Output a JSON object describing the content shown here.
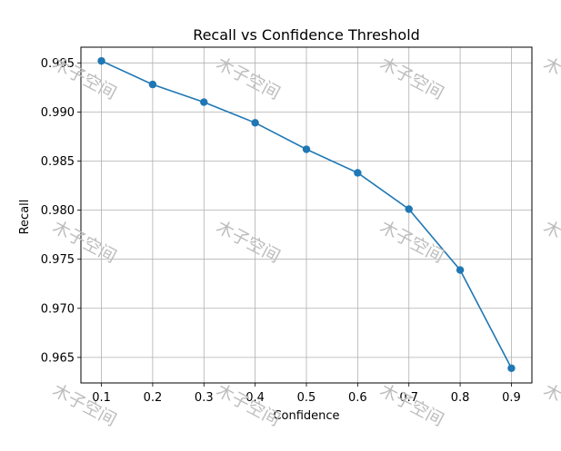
{
  "chart_data": {
    "type": "line",
    "title": "Recall vs Confidence Threshold",
    "xlabel": "Confidence",
    "ylabel": "Recall",
    "x": [
      0.1,
      0.2,
      0.3,
      0.4,
      0.5,
      0.6,
      0.7,
      0.8,
      0.9
    ],
    "xtick_labels": [
      "0.1",
      "0.2",
      "0.3",
      "0.4",
      "0.5",
      "0.6",
      "0.7",
      "0.8",
      "0.9"
    ],
    "yticks": [
      0.965,
      0.97,
      0.975,
      0.98,
      0.985,
      0.99,
      0.995
    ],
    "ytick_labels": [
      "0.965",
      "0.970",
      "0.975",
      "0.980",
      "0.985",
      "0.990",
      "0.995"
    ],
    "xlim": [
      0.06,
      0.94
    ],
    "ylim": [
      0.9624,
      0.9966
    ],
    "grid": true,
    "series": [
      {
        "values": [
          0.9952,
          0.9928,
          0.991,
          0.9889,
          0.9862,
          0.9838,
          0.9801,
          0.9739,
          0.9639
        ],
        "color": "#1f77b4",
        "marker": "circle"
      }
    ],
    "watermark": "木子空间"
  }
}
